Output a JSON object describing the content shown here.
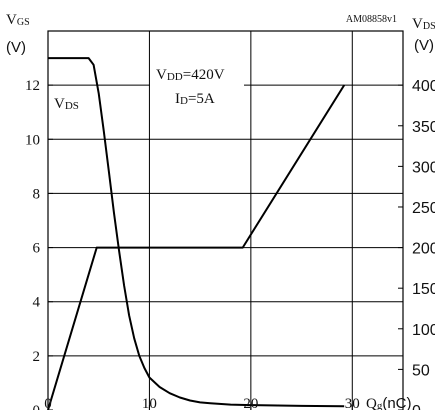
{
  "chart_data": {
    "type": "line",
    "code_label": "AM08858v1",
    "y_left": {
      "label_main": "V",
      "label_sub": "GS",
      "unit": "(V)",
      "range": [
        0,
        14
      ],
      "ticks": [
        0,
        2,
        4,
        6,
        8,
        10,
        12
      ]
    },
    "y_right": {
      "label_main": "V",
      "label_sub": "DS",
      "unit": "(V)",
      "range": [
        0,
        466.7
      ],
      "ticks": [
        0,
        50,
        100,
        150,
        200,
        250,
        300,
        350,
        400
      ],
      "tick_labels": [
        "0",
        "50",
        "100",
        "150",
        "200",
        "250",
        "300",
        "350",
        "400"
      ]
    },
    "x_axis": {
      "label_main": "Q",
      "label_sub": "g",
      "unit": "(nC)",
      "range": [
        0,
        35
      ],
      "ticks": [
        0,
        10,
        20,
        30
      ]
    },
    "annotations": {
      "vdd_main": "V",
      "vdd_sub": "DD",
      "vdd_value": "=420V",
      "id_main": "I",
      "id_sub": "D",
      "id_value": "=5A",
      "vds_curve_main": "V",
      "vds_curve_sub": "DS"
    },
    "series": [
      {
        "axis": "left",
        "values_x": [
          0,
          4.8,
          19.2,
          29.2
        ],
        "values_y": [
          0,
          6.0,
          6.0,
          12.0
        ]
      },
      {
        "axis": "left",
        "values_x": [
          0,
          2,
          4,
          4.5,
          5,
          5.5,
          6,
          6.5,
          7,
          7.5,
          8,
          8.5,
          9,
          9.5,
          10,
          11,
          12,
          13,
          14,
          15,
          16,
          18,
          20,
          25,
          29.2
        ],
        "values_y": [
          13.0,
          13.0,
          13.0,
          12.75,
          11.7,
          10.3,
          8.8,
          7.3,
          5.9,
          4.6,
          3.5,
          2.65,
          2.0,
          1.55,
          1.2,
          0.85,
          0.62,
          0.46,
          0.35,
          0.28,
          0.25,
          0.2,
          0.18,
          0.15,
          0.14
        ]
      }
    ],
    "grid": true
  }
}
